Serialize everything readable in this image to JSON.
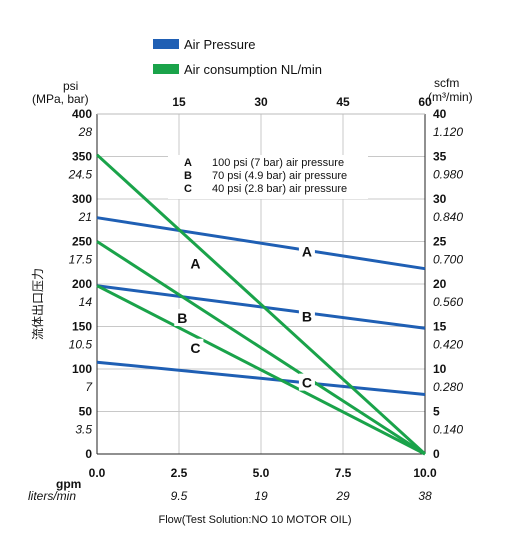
{
  "legend": [
    {
      "label": "Air Pressure",
      "color": "#1f5fb4"
    },
    {
      "label": "Air consumption NL/min",
      "color": "#1aa34a"
    }
  ],
  "axes": {
    "left_unit_line1": "psi",
    "left_unit_line2": "(MPa, bar)",
    "right_unit_line1": "scfm",
    "right_unit_line2": "(m³/min)",
    "left_vertical_title": "流体出口压力",
    "bottom_label_main": "gpm",
    "bottom_label_sub": "liters/min",
    "footer": "Flow(Test Solution:NO 10 MOTOR OIL)"
  },
  "notes": [
    {
      "key": "A",
      "text": "100 psi (7 bar) air pressure"
    },
    {
      "key": "B",
      "text": "70 psi (4.9 bar) air pressure"
    },
    {
      "key": "C",
      "text": "40 psi (2.8 bar) air pressure"
    }
  ],
  "chart_data": {
    "type": "line",
    "x_gpm_ticks": [
      "0.0",
      "2.5",
      "5.0",
      "7.5",
      "10.0"
    ],
    "x_lpm_ticks": [
      "",
      "9.5",
      "19",
      "29",
      "38"
    ],
    "x_top_scfm_ticks": [
      "15",
      "30",
      "45",
      "60"
    ],
    "left_psi_ticks": [
      "0",
      "50",
      "100",
      "150",
      "200",
      "250",
      "300",
      "350",
      "400"
    ],
    "left_mpa_ticks": [
      "",
      "3.5",
      "7",
      "10.5",
      "14",
      "17.5",
      "21",
      "24.5",
      "28"
    ],
    "right_scfm_ticks": [
      "0",
      "5",
      "10",
      "15",
      "20",
      "25",
      "30",
      "35",
      "40"
    ],
    "right_m3_ticks": [
      "",
      "0.140",
      "0.280",
      "0.420",
      "0.560",
      "0.700",
      "0.840",
      "0.980",
      "1.120"
    ],
    "xlim": [
      0,
      10
    ],
    "ylim": [
      0,
      400
    ],
    "pressure_series": [
      {
        "name": "A",
        "x": [
          0,
          10
        ],
        "y": [
          278,
          218
        ]
      },
      {
        "name": "B",
        "x": [
          0,
          10
        ],
        "y": [
          198,
          148
        ]
      },
      {
        "name": "C",
        "x": [
          0,
          10
        ],
        "y": [
          108,
          70
        ]
      }
    ],
    "consumption_series": [
      {
        "name": "A",
        "x": [
          0,
          10
        ],
        "y": [
          352,
          0
        ]
      },
      {
        "name": "B",
        "x": [
          0,
          10
        ],
        "y": [
          250,
          0
        ]
      },
      {
        "name": "C",
        "x": [
          0,
          10
        ],
        "y": [
          198,
          0
        ]
      }
    ],
    "pressure_labels": [
      {
        "text": "A",
        "x": 6.4,
        "y": 238
      },
      {
        "text": "B",
        "x": 6.4,
        "y": 162
      },
      {
        "text": "C",
        "x": 6.4,
        "y": 84
      }
    ],
    "consumption_labels": [
      {
        "text": "A",
        "x": 3.0,
        "y": 224
      },
      {
        "text": "B",
        "x": 2.6,
        "y": 160
      },
      {
        "text": "C",
        "x": 3.0,
        "y": 125
      }
    ],
    "colors": {
      "pressure": "#1f5fb4",
      "consumption": "#1aa34a",
      "grid": "#c8c8c8"
    }
  }
}
